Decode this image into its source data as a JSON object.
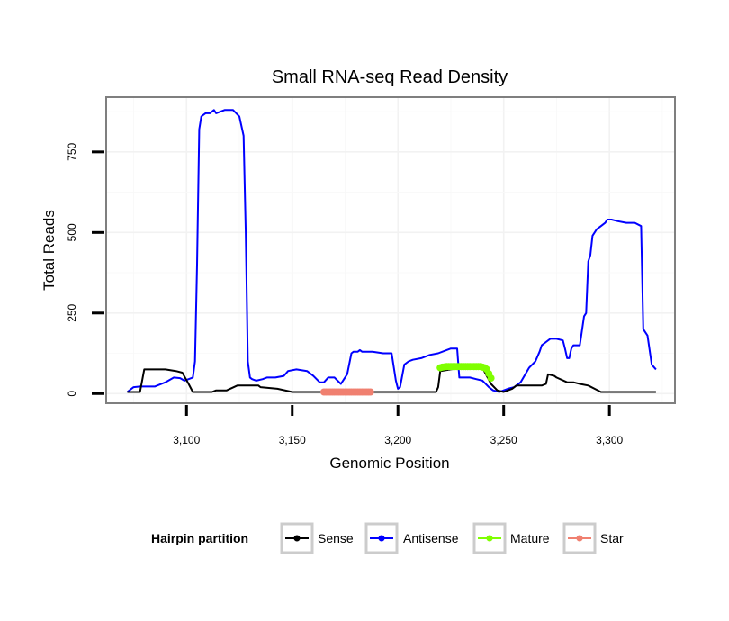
{
  "chart_data": {
    "type": "line",
    "title": "Small RNA-seq Read Density",
    "xlabel": "Genomic Position",
    "ylabel": "Total Reads",
    "xlim": [
      3062,
      3331
    ],
    "ylim": [
      -30,
      920
    ],
    "x_ticks": [
      3100,
      3150,
      3200,
      3250,
      3300
    ],
    "x_tick_labels": [
      "3,100",
      "3,150",
      "3,200",
      "3,250",
      "3,300"
    ],
    "y_ticks": [
      0,
      250,
      500,
      750
    ],
    "y_tick_labels": [
      "0",
      "250",
      "500",
      "750"
    ],
    "grid": true,
    "legend": {
      "title": "Hairpin partition",
      "position": "bottom",
      "entries": [
        "Sense",
        "Antisense",
        "Mature",
        "Star"
      ]
    },
    "series": [
      {
        "name": "Antisense",
        "color": "#0000ff",
        "style": "line",
        "x": [
          3072,
          3075,
          3078,
          3085,
          3090,
          3094,
          3097,
          3099,
          3101,
          3103,
          3104,
          3105,
          3106,
          3107,
          3109,
          3111,
          3113,
          3114,
          3118,
          3122,
          3125,
          3127,
          3128,
          3129,
          3130,
          3131,
          3133,
          3136,
          3138,
          3142,
          3146,
          3148,
          3152,
          3157,
          3160,
          3163,
          3165,
          3167,
          3170,
          3173,
          3176,
          3178,
          3179,
          3181,
          3182,
          3183,
          3185,
          3188,
          3193,
          3197,
          3199,
          3200,
          3201,
          3203,
          3205,
          3207,
          3211,
          3215,
          3219,
          3223,
          3225,
          3226,
          3228,
          3229,
          3234,
          3237,
          3240,
          3243,
          3245,
          3248,
          3250,
          3252,
          3255,
          3258,
          3262,
          3265,
          3267,
          3268,
          3270,
          3272,
          3275,
          3278,
          3279,
          3280,
          3281,
          3282,
          3283,
          3286,
          3288,
          3289,
          3290,
          3291,
          3292,
          3294,
          3296,
          3298,
          3299,
          3300,
          3301,
          3304,
          3308,
          3312,
          3315,
          3316,
          3318,
          3320,
          3322
        ],
        "y": [
          5,
          20,
          22,
          22,
          35,
          50,
          48,
          40,
          45,
          50,
          100,
          400,
          820,
          860,
          870,
          870,
          880,
          870,
          880,
          880,
          860,
          800,
          500,
          100,
          50,
          45,
          40,
          45,
          50,
          50,
          55,
          70,
          75,
          70,
          55,
          35,
          35,
          50,
          50,
          30,
          60,
          125,
          130,
          130,
          135,
          130,
          130,
          130,
          125,
          125,
          40,
          15,
          20,
          90,
          100,
          105,
          110,
          120,
          125,
          135,
          140,
          140,
          140,
          50,
          50,
          45,
          40,
          20,
          10,
          5,
          10,
          15,
          20,
          35,
          80,
          100,
          130,
          150,
          160,
          170,
          170,
          165,
          140,
          110,
          110,
          140,
          150,
          150,
          240,
          250,
          410,
          430,
          490,
          510,
          520,
          530,
          540,
          540,
          540,
          535,
          530,
          530,
          520,
          200,
          180,
          90,
          75
        ]
      },
      {
        "name": "Sense",
        "color": "#000000",
        "style": "line",
        "x": [
          3072,
          3077,
          3078,
          3080,
          3086,
          3090,
          3095,
          3098,
          3101,
          3103,
          3104,
          3106,
          3112,
          3114,
          3115,
          3119,
          3124,
          3126,
          3128,
          3134,
          3135,
          3143,
          3150,
          3160,
          3180,
          3200,
          3210,
          3218,
          3219,
          3220,
          3230,
          3240,
          3242,
          3244,
          3247,
          3250,
          3254,
          3256,
          3260,
          3265,
          3268,
          3270,
          3271,
          3274,
          3275,
          3280,
          3283,
          3286,
          3290,
          3293,
          3296,
          3300,
          3305,
          3310,
          3315,
          3322
        ],
        "y": [
          5,
          5,
          5,
          75,
          75,
          75,
          70,
          65,
          30,
          5,
          5,
          5,
          5,
          10,
          10,
          10,
          25,
          25,
          25,
          25,
          20,
          15,
          5,
          5,
          5,
          5,
          5,
          5,
          20,
          70,
          80,
          80,
          55,
          30,
          10,
          5,
          15,
          25,
          25,
          25,
          25,
          30,
          60,
          55,
          50,
          35,
          35,
          30,
          25,
          15,
          5,
          5,
          5,
          5,
          5,
          5
        ]
      },
      {
        "name": "Mature",
        "color": "#7fff00",
        "style": "points",
        "x": [
          3220,
          3221,
          3222,
          3223,
          3224,
          3225,
          3226,
          3227,
          3228,
          3229,
          3230,
          3231,
          3232,
          3233,
          3234,
          3235,
          3236,
          3237,
          3238,
          3239,
          3240,
          3241,
          3242,
          3243,
          3244
        ],
        "y": [
          80,
          82,
          83,
          84,
          84,
          84,
          84,
          84,
          84,
          84,
          84,
          84,
          84,
          84,
          84,
          84,
          84,
          84,
          84,
          84,
          82,
          80,
          75,
          62,
          48
        ]
      },
      {
        "name": "Star",
        "color": "#f08070",
        "style": "points",
        "x": [
          3165,
          3166,
          3167,
          3168,
          3169,
          3170,
          3171,
          3172,
          3173,
          3174,
          3175,
          3176,
          3177,
          3178,
          3179,
          3180,
          3181,
          3182,
          3183,
          3184,
          3185,
          3186,
          3187
        ],
        "y": [
          5,
          5,
          5,
          5,
          5,
          5,
          5,
          5,
          5,
          5,
          5,
          5,
          5,
          5,
          5,
          5,
          5,
          5,
          5,
          5,
          5,
          5,
          5
        ]
      }
    ]
  }
}
